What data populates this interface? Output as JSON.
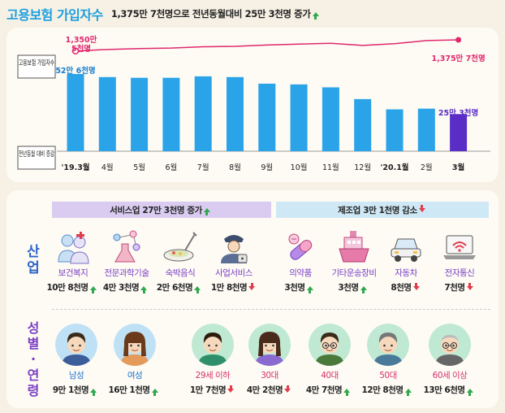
{
  "header": {
    "title": "고용보험 가입자수",
    "subtitle": "1,375만 7천명으로 전년동월대비 25만 3천명 증가"
  },
  "chart_data": {
    "type": "bar",
    "categories": [
      "'19.3월",
      "4월",
      "5월",
      "6월",
      "7월",
      "8월",
      "9월",
      "10월",
      "11월",
      "12월",
      "'20.1월",
      "2월",
      "3월"
    ],
    "series": [
      {
        "name": "전년동월 대비 증감",
        "values": [
          52.6,
          50.5,
          50.0,
          50.0,
          51.0,
          50.5,
          46.0,
          45.5,
          43.5,
          35.5,
          28.5,
          29.0,
          25.3
        ]
      },
      {
        "name": "고용보험 가입자수",
        "values": [
          1350.5,
          1354,
          1356,
          1357,
          1360,
          1361,
          1364,
          1366,
          1368,
          1363,
          1367,
          1374,
          1375.7
        ]
      }
    ],
    "row_labels": [
      "고용보험 가입자수",
      "전년동월 대비 증감"
    ],
    "annotations": {
      "line_start": "1,350만 5천명",
      "line_end": "1,375만 7천명",
      "bar_start": "52만 6천명",
      "bar_end": "25만 3천명"
    },
    "colors": {
      "bar": "#2ba3e8",
      "bar_highlight": "#5a2ec6",
      "line": "#e0286e"
    }
  },
  "sectors": {
    "service": "서비스업 27만 3천명 증가",
    "manufacturing": "제조업 3만 1천명 감소"
  },
  "side_labels": {
    "industry": "산업",
    "demographics": "성별·연령"
  },
  "industries": [
    {
      "icon": "health-welfare-icon",
      "label": "보건복지",
      "value": "10만 8천명",
      "trend": "up",
      "color": "purple"
    },
    {
      "icon": "science-tech-icon",
      "label": "전문과학기술",
      "value": "4만 3천명",
      "trend": "up",
      "color": "purple"
    },
    {
      "icon": "food-dish-icon",
      "label": "숙박음식",
      "value": "2만 6천명",
      "trend": "up",
      "color": "purple"
    },
    {
      "icon": "security-guard-icon",
      "label": "사업서비스",
      "value": "1만 8천명",
      "trend": "down",
      "color": "purple"
    },
    {
      "icon": "pill-icon",
      "label": "의약품",
      "value": "3천명",
      "trend": "up",
      "color": "purple"
    },
    {
      "icon": "ship-icon",
      "label": "기타운송장비",
      "value": "3천명",
      "trend": "up",
      "color": "purple"
    },
    {
      "icon": "car-icon",
      "label": "자동차",
      "value": "8천명",
      "trend": "down",
      "color": "purple"
    },
    {
      "icon": "laptop-wifi-icon",
      "label": "전자통신",
      "value": "7천명",
      "trend": "down",
      "color": "purple"
    }
  ],
  "demographics": [
    {
      "icon": "man-avatar-icon",
      "label": "남성",
      "value": "9만 1천명",
      "trend": "up",
      "color": "blue"
    },
    {
      "icon": "woman-avatar-icon",
      "label": "여성",
      "value": "16만 1천명",
      "trend": "up",
      "color": "blue"
    },
    {
      "icon": "young-avatar-icon",
      "label": "29세 이하",
      "value": "1만 7천명",
      "trend": "down",
      "color": "red"
    },
    {
      "icon": "thirties-avatar-icon",
      "label": "30대",
      "value": "4만 2천명",
      "trend": "down",
      "color": "red"
    },
    {
      "icon": "forties-avatar-icon",
      "label": "40대",
      "value": "4만 7천명",
      "trend": "up",
      "color": "red"
    },
    {
      "icon": "fifties-avatar-icon",
      "label": "50대",
      "value": "12만 8천명",
      "trend": "up",
      "color": "red"
    },
    {
      "icon": "sixties-avatar-icon",
      "label": "60세 이상",
      "value": "13만 6천명",
      "trend": "up",
      "color": "red"
    }
  ]
}
